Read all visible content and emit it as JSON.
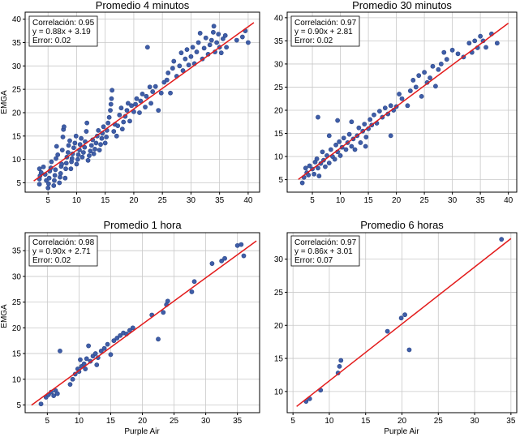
{
  "chart_data": [
    {
      "type": "scatter",
      "title": "Promedio 4 minutos",
      "xlabel": "",
      "ylabel": "EMGA",
      "xlim": [
        1,
        42
      ],
      "ylim": [
        3,
        41.5
      ],
      "xticks": [
        5,
        10,
        15,
        20,
        25,
        30,
        35,
        40
      ],
      "yticks": [
        5,
        10,
        15,
        20,
        25,
        30,
        35,
        40
      ],
      "grid": true,
      "stats": {
        "correlation": "Correlación: 0.95",
        "equation": "y = 0.88x + 3.19",
        "error": "Error: 0.02"
      },
      "fit": {
        "slope": 0.88,
        "intercept": 3.19,
        "x_range": [
          2.5,
          41
        ]
      },
      "points": [
        [
          3.5,
          4.7
        ],
        [
          3.5,
          5.8
        ],
        [
          3.6,
          6.5
        ],
        [
          3.8,
          7.2
        ],
        [
          3.5,
          8.0
        ],
        [
          4.2,
          8.4
        ],
        [
          4.5,
          6.8
        ],
        [
          4.7,
          5.5
        ],
        [
          5.0,
          3.9
        ],
        [
          5.1,
          4.8
        ],
        [
          5.2,
          6.0
        ],
        [
          5.3,
          7.5
        ],
        [
          5.5,
          8.2
        ],
        [
          5.6,
          9.5
        ],
        [
          6.0,
          4.4
        ],
        [
          6.1,
          5.5
        ],
        [
          6.2,
          6.6
        ],
        [
          6.3,
          7.8
        ],
        [
          6.4,
          10.2
        ],
        [
          6.5,
          12.8
        ],
        [
          6.7,
          11.0
        ],
        [
          7.0,
          5.0
        ],
        [
          7.1,
          6.2
        ],
        [
          7.2,
          7.0
        ],
        [
          7.3,
          8.5
        ],
        [
          7.4,
          9.0
        ],
        [
          7.5,
          12.0
        ],
        [
          7.6,
          14.8
        ],
        [
          7.7,
          16.4
        ],
        [
          7.8,
          17.0
        ],
        [
          8.0,
          6.0
        ],
        [
          8.1,
          8.0
        ],
        [
          8.2,
          9.2
        ],
        [
          8.3,
          10.5
        ],
        [
          8.5,
          11.5
        ],
        [
          8.6,
          13.0
        ],
        [
          8.8,
          14.0
        ],
        [
          9.0,
          8.0
        ],
        [
          9.1,
          9.5
        ],
        [
          9.2,
          10.2
        ],
        [
          9.3,
          11.2
        ],
        [
          9.5,
          12.5
        ],
        [
          9.7,
          13.5
        ],
        [
          9.9,
          15.0
        ],
        [
          10.0,
          9.0
        ],
        [
          10.2,
          10.0
        ],
        [
          10.3,
          11.0
        ],
        [
          10.5,
          12.0
        ],
        [
          10.6,
          13.2
        ],
        [
          10.8,
          14.5
        ],
        [
          11.0,
          10.5
        ],
        [
          11.2,
          11.5
        ],
        [
          11.4,
          12.6
        ],
        [
          11.5,
          13.8
        ],
        [
          11.7,
          16.0
        ],
        [
          11.8,
          17.8
        ],
        [
          12.0,
          9.8
        ],
        [
          12.2,
          10.8
        ],
        [
          12.4,
          11.8
        ],
        [
          12.6,
          13.0
        ],
        [
          12.8,
          14.2
        ],
        [
          13.0,
          11.2
        ],
        [
          13.2,
          12.2
        ],
        [
          13.4,
          13.5
        ],
        [
          13.6,
          15.0
        ],
        [
          13.8,
          16.2
        ],
        [
          14.0,
          12.0
        ],
        [
          14.2,
          13.2
        ],
        [
          14.4,
          14.5
        ],
        [
          14.5,
          15.6
        ],
        [
          14.7,
          17.0
        ],
        [
          15.0,
          13.5
        ],
        [
          15.2,
          14.8
        ],
        [
          15.3,
          16.2
        ],
        [
          15.5,
          17.8
        ],
        [
          15.7,
          19.0
        ],
        [
          15.9,
          20.5
        ],
        [
          16.0,
          21.8
        ],
        [
          16.1,
          23.0
        ],
        [
          16.2,
          24.8
        ],
        [
          16.5,
          16.0
        ],
        [
          16.7,
          17.5
        ],
        [
          17.0,
          15.0
        ],
        [
          17.2,
          17.2
        ],
        [
          17.5,
          19.5
        ],
        [
          17.8,
          21.0
        ],
        [
          18.0,
          16.5
        ],
        [
          18.2,
          18.0
        ],
        [
          18.5,
          19.2
        ],
        [
          18.8,
          20.5
        ],
        [
          19.0,
          22.0
        ],
        [
          19.3,
          18.2
        ],
        [
          19.6,
          21.5
        ],
        [
          20.0,
          20.2
        ],
        [
          20.3,
          21.8
        ],
        [
          20.5,
          23.0
        ],
        [
          21.0,
          20.0
        ],
        [
          21.2,
          22.5
        ],
        [
          21.5,
          24.0
        ],
        [
          22.0,
          21.2
        ],
        [
          22.2,
          23.5
        ],
        [
          22.4,
          34.0
        ],
        [
          22.8,
          25.5
        ],
        [
          23.0,
          22.0
        ],
        [
          23.3,
          24.5
        ],
        [
          23.8,
          25.6
        ],
        [
          24.3,
          20.5
        ],
        [
          24.8,
          24.2
        ],
        [
          25.3,
          26.5
        ],
        [
          25.8,
          27.0
        ],
        [
          26.0,
          28.5
        ],
        [
          26.4,
          24.2
        ],
        [
          26.8,
          29.5
        ],
        [
          27.0,
          31.0
        ],
        [
          27.5,
          27.8
        ],
        [
          28.0,
          30.0
        ],
        [
          28.3,
          32.8
        ],
        [
          28.6,
          29.0
        ],
        [
          29.0,
          31.5
        ],
        [
          29.3,
          33.5
        ],
        [
          29.6,
          30.2
        ],
        [
          30.0,
          32.0
        ],
        [
          30.3,
          34.0
        ],
        [
          30.6,
          30.5
        ],
        [
          31.0,
          33.0
        ],
        [
          31.3,
          35.0
        ],
        [
          31.6,
          37.0
        ],
        [
          32.0,
          31.5
        ],
        [
          32.3,
          33.8
        ],
        [
          32.6,
          36.0
        ],
        [
          33.0,
          32.5
        ],
        [
          33.3,
          34.5
        ],
        [
          33.6,
          35.5
        ],
        [
          33.9,
          37.2
        ],
        [
          34.0,
          38.5
        ],
        [
          34.2,
          33.0
        ],
        [
          34.5,
          35.0
        ],
        [
          34.8,
          36.8
        ],
        [
          35.0,
          34.0
        ],
        [
          35.3,
          32.8
        ],
        [
          35.6,
          35.8
        ],
        [
          36.0,
          36.5
        ],
        [
          36.2,
          34.0
        ],
        [
          38.0,
          35.5
        ],
        [
          39.0,
          36.2
        ],
        [
          39.5,
          37.5
        ],
        [
          40.0,
          35.0
        ]
      ]
    },
    {
      "type": "scatter",
      "title": "Promedio 30 minutos",
      "xlabel": "",
      "ylabel": "",
      "xlim": [
        0.5,
        41.5
      ],
      "ylim": [
        2.3,
        41.2
      ],
      "xticks": [
        5,
        10,
        15,
        20,
        25,
        30,
        35,
        40
      ],
      "yticks": [
        5,
        10,
        15,
        20,
        25,
        30,
        35,
        40
      ],
      "grid": true,
      "stats": {
        "correlation": "Correlación: 0.97",
        "equation": "y = 0.90x + 2.81",
        "error": "Error: 0.02"
      },
      "fit": {
        "slope": 0.9,
        "intercept": 2.81,
        "x_range": [
          2.5,
          40
        ]
      },
      "points": [
        [
          3.2,
          4.3
        ],
        [
          3.5,
          5.5
        ],
        [
          3.8,
          7.5
        ],
        [
          4.0,
          6.5
        ],
        [
          4.3,
          6.0
        ],
        [
          4.5,
          8.0
        ],
        [
          5.0,
          7.3
        ],
        [
          5.3,
          6.2
        ],
        [
          5.5,
          8.8
        ],
        [
          5.8,
          9.5
        ],
        [
          6.0,
          7.5
        ],
        [
          6.2,
          5.8
        ],
        [
          6.5,
          8.5
        ],
        [
          6.8,
          11.0
        ],
        [
          7.0,
          9.2
        ],
        [
          7.3,
          7.8
        ],
        [
          7.6,
          10.2
        ],
        [
          8.0,
          8.6
        ],
        [
          8.3,
          11.5
        ],
        [
          8.6,
          10.0
        ],
        [
          9.0,
          9.4
        ],
        [
          9.2,
          12.5
        ],
        [
          9.5,
          11.0
        ],
        [
          9.8,
          13.2
        ],
        [
          10.0,
          10.2
        ],
        [
          10.3,
          12.0
        ],
        [
          10.6,
          14.0
        ],
        [
          11.0,
          11.5
        ],
        [
          11.3,
          13.0
        ],
        [
          11.6,
          14.8
        ],
        [
          12.0,
          12.2
        ],
        [
          12.3,
          13.8
        ],
        [
          12.6,
          11.5
        ],
        [
          13.0,
          14.5
        ],
        [
          13.3,
          16.2
        ],
        [
          13.6,
          13.0
        ],
        [
          14.0,
          15.5
        ],
        [
          14.3,
          17.0
        ],
        [
          14.6,
          14.2
        ],
        [
          15.0,
          16.0
        ],
        [
          15.3,
          18.0
        ],
        [
          15.6,
          16.8
        ],
        [
          16.0,
          19.0
        ],
        [
          16.5,
          17.2
        ],
        [
          17.0,
          19.8
        ],
        [
          17.5,
          18.5
        ],
        [
          18.0,
          20.5
        ],
        [
          18.5,
          19.2
        ],
        [
          19.0,
          21.0
        ],
        [
          19.5,
          20.0
        ],
        [
          20.0,
          20.8
        ],
        [
          21.0,
          22.5
        ],
        [
          22.0,
          21.0
        ],
        [
          22.5,
          24.2
        ],
        [
          23.0,
          26.5
        ],
        [
          23.5,
          25.0
        ],
        [
          24.0,
          27.5
        ],
        [
          24.5,
          23.0
        ],
        [
          25.0,
          28.2
        ],
        [
          25.5,
          26.0
        ],
        [
          26.0,
          27.0
        ],
        [
          26.5,
          29.5
        ],
        [
          27.0,
          25.2
        ],
        [
          27.5,
          28.8
        ],
        [
          28.0,
          30.0
        ],
        [
          28.5,
          32.5
        ],
        [
          29.0,
          31.0
        ],
        [
          30.0,
          33.0
        ],
        [
          31.0,
          32.2
        ],
        [
          32.0,
          31.5
        ],
        [
          33.0,
          34.5
        ],
        [
          33.5,
          32.5
        ],
        [
          34.0,
          35.0
        ],
        [
          34.5,
          33.5
        ],
        [
          35.0,
          36.0
        ],
        [
          35.5,
          35.0
        ],
        [
          36.0,
          33.6
        ],
        [
          37.0,
          36.5
        ],
        [
          38.0,
          34.5
        ],
        [
          6.0,
          18.5
        ],
        [
          8.0,
          14.5
        ],
        [
          12.0,
          17.5
        ],
        [
          14.5,
          12.2
        ],
        [
          19.0,
          14.5
        ],
        [
          20.5,
          23.5
        ],
        [
          9.5,
          17.8
        ]
      ]
    },
    {
      "type": "scatter",
      "title": "Promedio 1 hora",
      "xlabel": "Purple Air",
      "ylabel": "EMGA",
      "xlim": [
        1.5,
        38.5
      ],
      "ylim": [
        3.5,
        38.5
      ],
      "xticks": [
        5,
        10,
        15,
        20,
        25,
        30,
        35
      ],
      "yticks": [
        5,
        10,
        15,
        20,
        25,
        30,
        35
      ],
      "grid": true,
      "stats": {
        "correlation": "Correlación: 0.98",
        "equation": "y = 0.90x + 2.71",
        "error": "Error: 0.02"
      },
      "fit": {
        "slope": 0.9,
        "intercept": 2.71,
        "x_range": [
          2.5,
          38
        ]
      },
      "points": [
        [
          4.0,
          5.2
        ],
        [
          4.8,
          6.5
        ],
        [
          5.2,
          7.0
        ],
        [
          5.6,
          7.5
        ],
        [
          6.0,
          6.8
        ],
        [
          6.3,
          7.8
        ],
        [
          6.6,
          7.2
        ],
        [
          7.0,
          15.5
        ],
        [
          8.6,
          9.0
        ],
        [
          9.0,
          10.0
        ],
        [
          9.4,
          11.0
        ],
        [
          9.8,
          12.0
        ],
        [
          10.0,
          11.5
        ],
        [
          10.4,
          12.5
        ],
        [
          10.8,
          13.0
        ],
        [
          11.0,
          12.0
        ],
        [
          11.2,
          14.0
        ],
        [
          11.5,
          16.5
        ],
        [
          11.8,
          13.5
        ],
        [
          12.2,
          14.5
        ],
        [
          12.6,
          15.0
        ],
        [
          13.0,
          14.2
        ],
        [
          13.5,
          15.5
        ],
        [
          14.0,
          16.0
        ],
        [
          14.5,
          16.8
        ],
        [
          15.0,
          14.8
        ],
        [
          15.5,
          17.5
        ],
        [
          16.0,
          18.0
        ],
        [
          16.5,
          18.5
        ],
        [
          17.0,
          19.0
        ],
        [
          17.5,
          18.8
        ],
        [
          18.0,
          19.5
        ],
        [
          18.5,
          20.0
        ],
        [
          21.5,
          22.5
        ],
        [
          22.5,
          17.8
        ],
        [
          23.3,
          23.0
        ],
        [
          23.8,
          24.5
        ],
        [
          24.0,
          25.2
        ],
        [
          27.8,
          27.0
        ],
        [
          28.2,
          29.0
        ],
        [
          31.0,
          32.5
        ],
        [
          32.5,
          33.0
        ],
        [
          33.0,
          33.5
        ],
        [
          35.0,
          36.0
        ],
        [
          35.6,
          36.2
        ],
        [
          36.0,
          34.0
        ],
        [
          12.8,
          12.8
        ],
        [
          10.2,
          13.8
        ]
      ]
    },
    {
      "type": "scatter",
      "title": "Promedio 6 horas",
      "xlabel": "Purple Air",
      "ylabel": "",
      "xlim": [
        4.2,
        35.8
      ],
      "ylim": [
        6.8,
        34.0
      ],
      "xticks": [
        5,
        10,
        15,
        20,
        25,
        30,
        35
      ],
      "yticks": [
        10,
        15,
        20,
        25,
        30
      ],
      "grid": true,
      "stats": {
        "correlation": "Correlación: 0.97",
        "equation": "y = 0.86x + 3.01",
        "error": "Error: 0.07"
      },
      "fit": {
        "slope": 0.86,
        "intercept": 3.01,
        "x_range": [
          5.5,
          35
        ]
      },
      "points": [
        [
          6.8,
          8.5
        ],
        [
          7.3,
          8.9
        ],
        [
          8.8,
          10.2
        ],
        [
          11.2,
          12.8
        ],
        [
          11.4,
          13.8
        ],
        [
          11.6,
          14.7
        ],
        [
          18.0,
          19.1
        ],
        [
          19.9,
          21.1
        ],
        [
          20.4,
          21.6
        ],
        [
          21.0,
          16.3
        ],
        [
          33.7,
          33.0
        ]
      ]
    }
  ]
}
